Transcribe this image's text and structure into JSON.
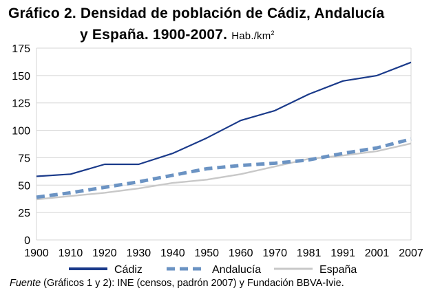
{
  "title": {
    "line1": "Gráfico 2. Densidad de población de Cádiz, Andalucía",
    "line2": "y España. 1900-2007.",
    "unit": "Hab./km",
    "unit_superscript": "2"
  },
  "chart_data": {
    "type": "line",
    "categories": [
      "1900",
      "1910",
      "1920",
      "1930",
      "1940",
      "1950",
      "1960",
      "1970",
      "1981",
      "1991",
      "2001",
      "2007"
    ],
    "ylim": [
      0,
      175
    ],
    "yticks": [
      0,
      25,
      50,
      75,
      100,
      125,
      150,
      175
    ],
    "grid": "horizontal",
    "legend": "bottom",
    "series": [
      {
        "name": "Cádiz",
        "color": "#1a3a8a",
        "style": "solid",
        "values": [
          58,
          60,
          69,
          69,
          79,
          93,
          109,
          118,
          133,
          145,
          150,
          162
        ]
      },
      {
        "name": "Andalucía",
        "color": "#6b93c3",
        "style": "dashed",
        "values": [
          39,
          43,
          48,
          53,
          59,
          65,
          68,
          70,
          73,
          79,
          84,
          92
        ]
      },
      {
        "name": "España",
        "color": "#c8c8c8",
        "style": "solid",
        "values": [
          37,
          40,
          43,
          47,
          52,
          55,
          60,
          67,
          74,
          77,
          81,
          88
        ]
      }
    ]
  },
  "source": {
    "label": "Fuente",
    "text": " (Gráficos 1 y 2): INE (censos, padrón 2007) y Fundación BBVA-Ivie."
  }
}
